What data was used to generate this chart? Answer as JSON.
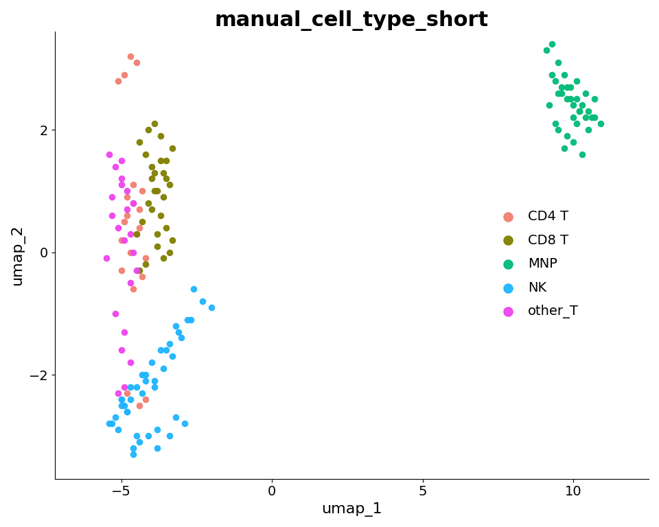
{
  "title": "manual_cell_type_short",
  "xlabel": "umap_1",
  "ylabel": "umap_2",
  "title_fontsize": 22,
  "label_fontsize": 16,
  "tick_fontsize": 14,
  "legend_fontsize": 14,
  "marker_size": 35,
  "xlim": [
    -7.2,
    12.5
  ],
  "ylim": [
    -3.7,
    3.6
  ],
  "xticks": [
    -5,
    0,
    5,
    10
  ],
  "yticks": [
    -2,
    0,
    2
  ],
  "cell_types": {
    "CD4 T": {
      "color": "#F08070",
      "x": [
        -4.8,
        -4.6,
        -4.4,
        -4.9,
        -4.5,
        -4.7,
        -5.0,
        -4.3,
        -4.6,
        -4.8,
        -4.4,
        -4.2,
        -4.5,
        -4.7,
        -4.9,
        -5.1,
        -4.3,
        -4.6,
        -4.8,
        -5.0,
        -4.2,
        -4.4
      ],
      "y": [
        0.9,
        1.1,
        0.7,
        0.5,
        0.3,
        0.0,
        -0.3,
        -0.4,
        -0.6,
        -2.3,
        -2.5,
        -2.4,
        3.1,
        3.2,
        2.9,
        2.8,
        1.0,
        0.8,
        0.6,
        0.2,
        -0.1,
        0.4
      ]
    },
    "CD8 T": {
      "color": "#808000",
      "x": [
        -4.1,
        -3.9,
        -3.7,
        -4.4,
        -4.2,
        -4.0,
        -3.6,
        -3.5,
        -3.3,
        -4.0,
        -3.8,
        -4.3,
        -4.5,
        -3.8,
        -3.6,
        -3.4,
        -4.0,
        -3.7,
        -3.5,
        -3.3,
        -4.1,
        -3.9,
        -3.6,
        -3.4,
        -3.8,
        -4.2,
        -4.4,
        -3.9,
        -3.7,
        -3.5
      ],
      "y": [
        2.0,
        2.1,
        1.9,
        1.8,
        1.6,
        1.4,
        1.3,
        1.5,
        1.7,
        1.2,
        1.0,
        0.5,
        0.3,
        0.1,
        -0.1,
        0.0,
        0.7,
        0.6,
        0.4,
        0.2,
        0.8,
        1.0,
        0.9,
        1.1,
        0.3,
        -0.2,
        -0.3,
        1.3,
        1.5,
        1.2
      ]
    },
    "MNP": {
      "color": "#00BB77",
      "x": [
        9.1,
        9.3,
        9.5,
        9.7,
        9.9,
        10.1,
        10.3,
        10.5,
        10.7,
        10.9,
        9.4,
        9.6,
        9.8,
        10.0,
        10.2,
        10.4,
        9.2,
        9.5,
        9.8,
        10.1,
        10.4,
        10.7,
        9.3,
        9.6,
        9.9,
        10.2,
        10.6,
        9.7,
        10.0,
        10.3,
        9.5,
        9.8,
        10.1,
        10.5,
        9.4,
        10.0
      ],
      "y": [
        3.3,
        3.4,
        3.1,
        2.9,
        2.7,
        2.5,
        2.4,
        2.3,
        2.2,
        2.1,
        2.8,
        2.6,
        2.5,
        2.4,
        2.3,
        2.2,
        2.4,
        2.6,
        2.7,
        2.8,
        2.6,
        2.5,
        2.9,
        2.7,
        2.5,
        2.3,
        2.2,
        1.7,
        1.8,
        1.6,
        2.0,
        1.9,
        2.1,
        2.0,
        2.1,
        2.2
      ]
    },
    "NK": {
      "color": "#1EB4FF",
      "x": [
        -2.6,
        -2.3,
        -2.0,
        -2.8,
        -3.1,
        -3.4,
        -3.7,
        -4.0,
        -4.2,
        -4.5,
        -4.7,
        -5.0,
        -5.2,
        -5.4,
        -4.8,
        -4.3,
        -3.9,
        -3.6,
        -3.3,
        -3.0,
        -2.7,
        -3.2,
        -3.8,
        -4.1,
        -4.4,
        -4.6,
        -5.1,
        -5.3,
        -4.9,
        -4.6,
        -3.8,
        -3.4,
        -2.9,
        -3.9,
        -4.2,
        -5.0,
        -4.7,
        -3.5,
        -3.2,
        -4.3,
        -4.8,
        -5.0,
        -4.5
      ],
      "y": [
        -0.6,
        -0.8,
        -0.9,
        -1.1,
        -1.3,
        -1.5,
        -1.6,
        -1.8,
        -2.0,
        -2.2,
        -2.4,
        -2.5,
        -2.7,
        -2.8,
        -2.6,
        -2.3,
        -2.1,
        -1.9,
        -1.7,
        -1.4,
        -1.1,
        -2.7,
        -2.9,
        -3.0,
        -3.1,
        -3.2,
        -2.9,
        -2.8,
        -2.5,
        -3.3,
        -3.2,
        -3.0,
        -2.8,
        -2.2,
        -2.1,
        -2.4,
        -2.2,
        -1.6,
        -1.2,
        -2.0,
        -2.6,
        -2.4,
        -3.0
      ]
    },
    "other_T": {
      "color": "#EE44EE",
      "x": [
        -5.4,
        -5.2,
        -5.0,
        -4.8,
        -4.6,
        -5.3,
        -5.1,
        -4.9,
        -5.5,
        -4.7,
        -5.2,
        -4.9,
        -5.0,
        -4.7,
        -4.9,
        -5.1,
        -4.6,
        -5.0,
        -5.3,
        -4.8,
        -4.5,
        -5.0,
        -4.7
      ],
      "y": [
        1.6,
        1.4,
        1.2,
        1.0,
        0.8,
        0.6,
        0.4,
        0.2,
        -0.1,
        -0.5,
        -1.0,
        -1.3,
        -1.6,
        -1.8,
        -2.2,
        -2.3,
        0.0,
        1.5,
        0.9,
        0.7,
        -0.3,
        1.1,
        0.3
      ]
    }
  }
}
